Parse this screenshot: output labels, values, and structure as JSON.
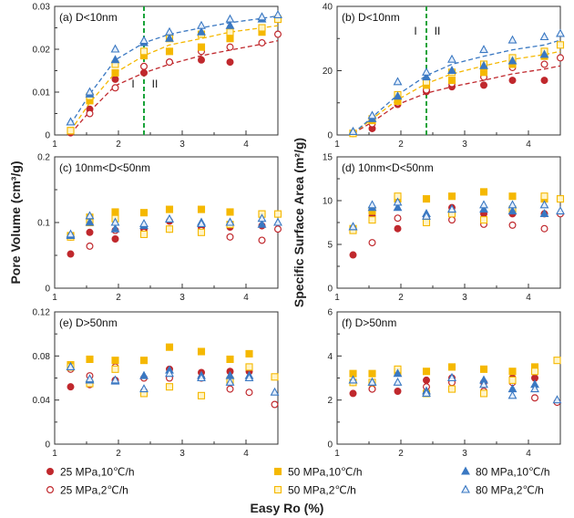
{
  "figure": {
    "ylabel_left": "Pore Volume (cm³/g)",
    "ylabel_right": "Specific Surface Area (m²/g)",
    "xlabel": "Easy Ro (%)"
  },
  "legend": [
    {
      "label": "25 MPa,10℃/h",
      "marker": "filled-circle",
      "color": "#c0282d"
    },
    {
      "label": "25 MPa,2℃/h",
      "marker": "open-circle",
      "color": "#c0282d"
    },
    {
      "label": "50 MPa,10℃/h",
      "marker": "filled-square",
      "color": "#f5b800"
    },
    {
      "label": "50 MPa,2℃/h",
      "marker": "open-square",
      "color": "#f5b800"
    },
    {
      "label": "80 MPa,10℃/h",
      "marker": "filled-triangle",
      "color": "#3a78c2"
    },
    {
      "label": "80 MPa,2℃/h",
      "marker": "open-triangle",
      "color": "#3a78c2"
    }
  ],
  "chart_data": [
    {
      "id": "a",
      "type": "scatter",
      "title": "(a) D<10nm",
      "xlim": [
        1,
        4.5
      ],
      "ylim": [
        0,
        0.03
      ],
      "xticks": [
        "1",
        "2",
        "3",
        "4"
      ],
      "yticks": [
        "0",
        "0.01",
        "0.02",
        "0.03"
      ],
      "stage_line_x": 2.4,
      "stage_labels": [
        "I",
        "II"
      ],
      "x": [
        1.25,
        1.55,
        1.95,
        2.4,
        2.8,
        3.3,
        3.75,
        4.25,
        4.5
      ],
      "series": [
        {
          "name": "25 MPa,10℃/h",
          "values": [
            0.0005,
            0.006,
            0.013,
            0.0145,
            0.017,
            0.0175,
            0.017,
            null,
            null
          ],
          "fit": [
            0.0003,
            0.0055,
            0.0115,
            0.0145,
            0.0165,
            0.0185,
            0.0198,
            0.0212,
            0.022
          ]
        },
        {
          "name": "25 MPa,2℃/h",
          "values": [
            0.001,
            0.005,
            0.011,
            0.016,
            0.017,
            0.0195,
            0.0205,
            0.0215,
            0.0235
          ]
        },
        {
          "name": "50 MPa,10℃/h",
          "values": [
            0.001,
            0.008,
            0.0145,
            0.0185,
            0.0195,
            0.0205,
            0.0225,
            0.024,
            null
          ],
          "fit": [
            0.001,
            0.0075,
            0.0145,
            0.0185,
            0.021,
            0.0225,
            0.024,
            0.025,
            0.0255
          ]
        },
        {
          "name": "50 MPa,2℃/h",
          "values": [
            0.001,
            0.009,
            0.0165,
            0.0195,
            0.0225,
            0.0235,
            0.024,
            0.025,
            0.027
          ]
        },
        {
          "name": "80 MPa,10℃/h",
          "values": [
            0.003,
            0.0095,
            0.0175,
            0.0215,
            0.0225,
            0.024,
            0.0255,
            0.027,
            null
          ],
          "fit": [
            0.0025,
            0.0095,
            0.0175,
            0.0215,
            0.0235,
            0.025,
            0.0262,
            0.0272,
            0.0278
          ]
        },
        {
          "name": "80 MPa,2℃/h",
          "values": [
            0.003,
            0.01,
            0.02,
            0.022,
            0.024,
            0.0255,
            0.027,
            0.0275,
            0.028
          ]
        }
      ]
    },
    {
      "id": "b",
      "type": "scatter",
      "title": "(b) D<10nm",
      "xlim": [
        1,
        4.5
      ],
      "ylim": [
        0,
        40
      ],
      "xticks": [
        "1",
        "2",
        "3",
        "4"
      ],
      "yticks": [
        "0",
        "20",
        "40"
      ],
      "stage_line_x": 2.4,
      "stage_labels": [
        "I",
        "II"
      ],
      "x": [
        1.25,
        1.55,
        1.95,
        2.4,
        2.8,
        3.3,
        3.75,
        4.25,
        4.5
      ],
      "series": [
        {
          "name": "25 MPa,10℃/h",
          "values": [
            0.5,
            2,
            9.5,
            13.5,
            15,
            15.5,
            17,
            17,
            null
          ],
          "fit": [
            0.5,
            4,
            9.5,
            13,
            15,
            17,
            19,
            20.5,
            21.5
          ]
        },
        {
          "name": "25 MPa,2℃/h",
          "values": [
            0.5,
            3.5,
            10,
            14,
            16,
            18,
            21,
            22,
            24
          ]
        },
        {
          "name": "50 MPa,10℃/h",
          "values": [
            0.5,
            4.5,
            10.5,
            15.5,
            17,
            19.5,
            22,
            24.5,
            null
          ],
          "fit": [
            0.5,
            5,
            11,
            16,
            19,
            21.5,
            23.5,
            25,
            26
          ]
        },
        {
          "name": "50 MPa,2℃/h",
          "values": [
            0.5,
            5,
            12.5,
            16.5,
            19.5,
            22,
            24,
            26,
            28
          ]
        },
        {
          "name": "80 MPa,10℃/h",
          "values": [
            1,
            5,
            12,
            18,
            20,
            21.5,
            23,
            25,
            null
          ],
          "fit": [
            0.5,
            5.5,
            12.5,
            18.5,
            22,
            24.5,
            26.5,
            28,
            29.5
          ]
        },
        {
          "name": "80 MPa,2℃/h",
          "values": [
            1,
            6,
            16.5,
            19.5,
            23.5,
            26.5,
            29.5,
            30.5,
            31.5
          ]
        }
      ]
    },
    {
      "id": "c",
      "type": "scatter",
      "title": "(c) 10nm<D<50nm",
      "xlim": [
        1,
        4.5
      ],
      "ylim": [
        0,
        0.2
      ],
      "xticks": [
        "1",
        "2",
        "3",
        "4"
      ],
      "yticks": [
        "0",
        "0.1",
        "0.2"
      ],
      "x": [
        1.25,
        1.55,
        1.95,
        2.4,
        2.8,
        3.3,
        3.75,
        4.25,
        4.5
      ],
      "series": [
        {
          "name": "25 MPa,10℃/h",
          "values": [
            0.052,
            0.085,
            0.075,
            0.09,
            0.102,
            0.093,
            0.093,
            0.095,
            null
          ]
        },
        {
          "name": "25 MPa,2℃/h",
          "values": [
            0.078,
            0.064,
            0.088,
            0.085,
            0.09,
            0.088,
            0.078,
            0.073,
            0.09
          ]
        },
        {
          "name": "50 MPa,10℃/h",
          "values": [
            0.08,
            0.108,
            0.116,
            0.115,
            0.12,
            0.12,
            0.116,
            0.113,
            null
          ]
        },
        {
          "name": "50 MPa,2℃/h",
          "values": [
            0.078,
            0.1,
            0.106,
            0.082,
            0.09,
            0.085,
            0.097,
            0.113,
            0.113
          ]
        },
        {
          "name": "80 MPa,10℃/h",
          "values": [
            0.08,
            0.1,
            0.09,
            0.095,
            0.105,
            0.1,
            0.1,
            0.097,
            null
          ]
        },
        {
          "name": "80 MPa,2℃/h",
          "values": [
            0.082,
            0.11,
            0.1,
            0.098,
            0.105,
            0.098,
            0.1,
            0.106,
            0.1
          ]
        }
      ]
    },
    {
      "id": "d",
      "type": "scatter",
      "title": "(d) 10nm<D<50nm",
      "xlim": [
        1,
        4.5
      ],
      "ylim": [
        0,
        15
      ],
      "xticks": [
        "1",
        "2",
        "3",
        "4"
      ],
      "yticks": [
        "0",
        "5",
        "10",
        "15"
      ],
      "x": [
        1.25,
        1.55,
        1.95,
        2.4,
        2.8,
        3.3,
        3.75,
        4.25,
        4.5
      ],
      "series": [
        {
          "name": "25 MPa,10℃/h",
          "values": [
            3.8,
            8.2,
            6.8,
            8,
            9.2,
            8.5,
            8.5,
            8.5,
            null
          ]
        },
        {
          "name": "25 MPa,2℃/h",
          "values": [
            6.8,
            5.2,
            8,
            7.8,
            7.8,
            7.3,
            7.2,
            6.8,
            8.5
          ]
        },
        {
          "name": "50 MPa,10℃/h",
          "values": [
            6.8,
            8.8,
            10.2,
            10.2,
            10.5,
            11,
            10.5,
            10.2,
            null
          ]
        },
        {
          "name": "50 MPa,2℃/h",
          "values": [
            6.6,
            7.8,
            10.5,
            7.5,
            8.5,
            7.8,
            9,
            10.5,
            10.2
          ]
        },
        {
          "name": "80 MPa,10℃/h",
          "values": [
            7,
            9.2,
            9.2,
            8.5,
            9,
            9,
            8.8,
            8.5,
            null
          ]
        },
        {
          "name": "80 MPa,2℃/h",
          "values": [
            7,
            9.5,
            9.8,
            8.2,
            9,
            9.5,
            9.5,
            9.5,
            8.8
          ]
        }
      ]
    },
    {
      "id": "e",
      "type": "scatter",
      "title": "(e) D>50nm",
      "xlim": [
        1,
        4.5
      ],
      "ylim": [
        0,
        0.12
      ],
      "xticks": [
        "1",
        "2",
        "3",
        "4"
      ],
      "yticks": [
        "0",
        "0.04",
        "0.08",
        "0.12"
      ],
      "x": [
        1.25,
        1.55,
        1.95,
        2.4,
        2.8,
        3.3,
        3.75,
        4.05,
        4.45
      ],
      "series": [
        {
          "name": "25 MPa,10℃/h",
          "values": [
            0.052,
            0.054,
            0.058,
            0.048,
            0.068,
            0.065,
            0.066,
            0.066,
            null
          ]
        },
        {
          "name": "25 MPa,2℃/h",
          "values": [
            0.068,
            0.062,
            0.07,
            0.06,
            0.06,
            0.06,
            0.05,
            0.047,
            0.036
          ]
        },
        {
          "name": "50 MPa,10℃/h",
          "values": [
            0.072,
            0.077,
            0.076,
            0.076,
            0.088,
            0.084,
            0.077,
            0.082,
            null
          ]
        },
        {
          "name": "50 MPa,2℃/h",
          "values": [
            0.07,
            0.055,
            0.068,
            0.046,
            0.052,
            0.044,
            0.058,
            0.07,
            0.061
          ]
        },
        {
          "name": "80 MPa,10℃/h",
          "values": [
            0.07,
            0.058,
            0.057,
            0.062,
            0.067,
            0.062,
            0.062,
            0.062,
            null
          ]
        },
        {
          "name": "80 MPa,2℃/h",
          "values": [
            0.07,
            0.059,
            0.058,
            0.05,
            0.064,
            0.06,
            0.056,
            0.06,
            0.047
          ]
        }
      ]
    },
    {
      "id": "f",
      "type": "scatter",
      "title": "(f) D>50nm",
      "xlim": [
        1,
        4.5
      ],
      "ylim": [
        0,
        6
      ],
      "xticks": [
        "1",
        "2",
        "3",
        "4"
      ],
      "yticks": [
        "0",
        "2",
        "4",
        "6"
      ],
      "x": [
        1.25,
        1.55,
        1.95,
        2.4,
        2.8,
        3.3,
        3.75,
        4.1,
        4.45
      ],
      "series": [
        {
          "name": "25 MPa,10℃/h",
          "values": [
            2.3,
            2.5,
            2.4,
            2.9,
            3,
            2.8,
            3,
            3,
            null
          ]
        },
        {
          "name": "25 MPa,2℃/h",
          "values": [
            2.8,
            2.5,
            3.3,
            2.6,
            2.8,
            2.4,
            2.8,
            2.1,
            1.9
          ]
        },
        {
          "name": "50 MPa,10℃/h",
          "values": [
            3.2,
            3.2,
            3.3,
            3.3,
            3.5,
            3.4,
            3.3,
            3.5,
            null
          ]
        },
        {
          "name": "50 MPa,2℃/h",
          "values": [
            2.8,
            2.8,
            3.4,
            2.3,
            2.5,
            2.3,
            2.9,
            3.3,
            3.8
          ]
        },
        {
          "name": "80 MPa,10℃/h",
          "values": [
            2.9,
            2.8,
            3.2,
            2.4,
            3,
            2.9,
            2.5,
            2.7,
            null
          ]
        },
        {
          "name": "80 MPa,2℃/h",
          "values": [
            2.9,
            2.8,
            2.8,
            2.3,
            3,
            2.7,
            2.2,
            2.5,
            2
          ]
        }
      ]
    }
  ]
}
